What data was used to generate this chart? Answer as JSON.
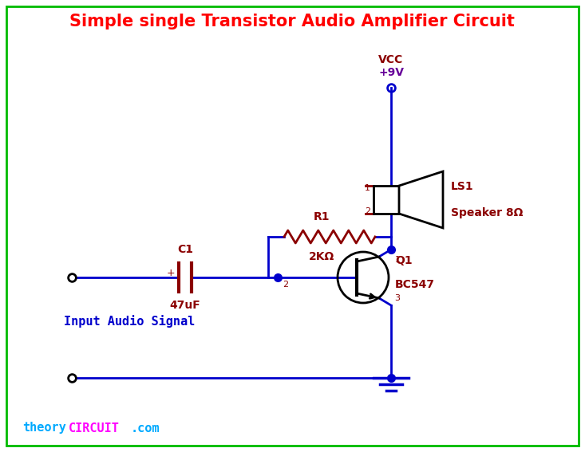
{
  "title": "Simple single Transistor Audio Amplifier Circuit",
  "title_color": "#FF0000",
  "title_fontsize": 15,
  "background_color": "#FFFFFF",
  "border_color": "#00BB00",
  "circuit_color": "#0000CC",
  "component_color": "#8B0000",
  "vcc_label": "VCC",
  "vcc_value": "+9V",
  "vcc_color": "#660099",
  "r1_label": "R1",
  "r1_value": "2KΩ",
  "c1_label": "C1",
  "c1_value": "47uF",
  "q1_label": "Q1",
  "q1_value": "BC547",
  "ls1_label": "LS1",
  "ls1_value": "Speaker 8Ω",
  "input_label": "Input Audio Signal",
  "website_theory": "theory",
  "website_circuit": "CIRCUIT",
  "website_com": ".com",
  "website_color1": "#00AAFF",
  "website_color2": "#FF00FF",
  "website_color3": "#00AAFF"
}
